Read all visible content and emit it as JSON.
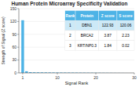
{
  "chart_data": {
    "type": "bar",
    "title": "Human Protein Microarray Specificity Validation",
    "xlabel": "Signal Rank",
    "ylabel": "Strength of Signal (Z score)",
    "x": [
      1,
      2,
      3,
      4,
      5,
      6,
      7,
      8,
      9,
      10,
      11,
      12,
      13,
      14,
      15,
      16,
      17,
      18,
      19,
      20,
      21,
      22,
      23,
      24,
      25,
      26,
      27,
      28,
      29,
      30
    ],
    "values": [
      122.93,
      3.87,
      1.84,
      1.5,
      1.4,
      1.3,
      1.2,
      1.1,
      1.0,
      0.95,
      0.9,
      0.85,
      0.8,
      0.75,
      0.7,
      0.65,
      0.6,
      0.55,
      0.5,
      0.45,
      0.4,
      0.35,
      0.3,
      0.25,
      0.2,
      0.15,
      0.1,
      0.05,
      0.02,
      0.01
    ],
    "color": "#4db3e6",
    "xlim": [
      0,
      30
    ],
    "xticks": [
      1,
      10,
      20,
      30
    ],
    "ylim": [
      0,
      150
    ],
    "yticks": [
      0,
      30,
      60,
      90,
      120,
      150
    ],
    "table": {
      "columns": [
        "Rank",
        "Protein",
        "Z score",
        "S score"
      ],
      "rows": [
        [
          "1",
          "DBN1",
          "122.93",
          "120.06"
        ],
        [
          "2",
          "BRCA2",
          "3.87",
          "2.23"
        ],
        [
          "3",
          "KRT/NP0.3",
          "1.84",
          "0.02"
        ]
      ]
    }
  }
}
